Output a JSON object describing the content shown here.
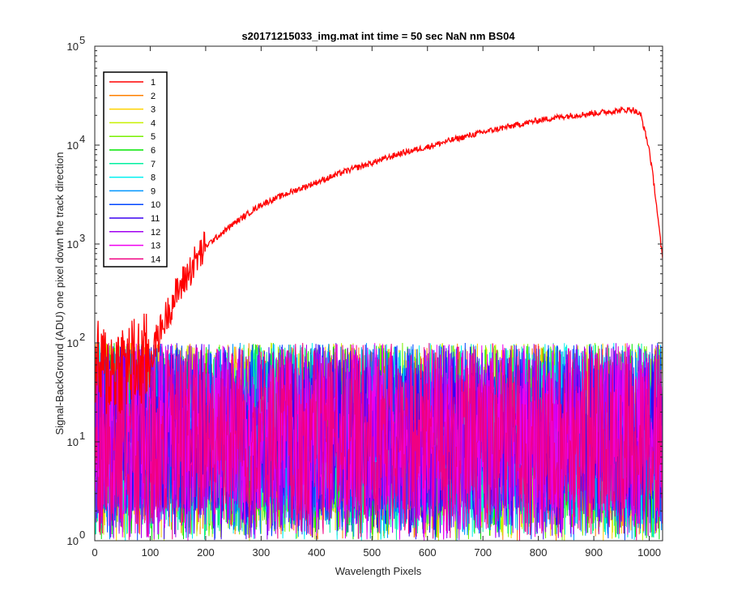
{
  "chart_data": {
    "type": "line",
    "title": "s20171215033_img.mat int time = 50 sec  NaN nm BS04",
    "xlabel": "Wavelength Pixels",
    "ylabel": "Signal-BackGround (ADU) one pixel down the track direction",
    "xlim": [
      0,
      1024
    ],
    "ylim": [
      1,
      100000
    ],
    "yscale": "log",
    "xticks": [
      0,
      100,
      200,
      300,
      400,
      500,
      600,
      700,
      800,
      900,
      1000
    ],
    "yticks": [
      {
        "value": 1,
        "base": "10",
        "exp": "0"
      },
      {
        "value": 10,
        "base": "10",
        "exp": "1"
      },
      {
        "value": 100,
        "base": "10",
        "exp": "2"
      },
      {
        "value": 1000,
        "base": "10",
        "exp": "3"
      },
      {
        "value": 10000,
        "base": "10",
        "exp": "4"
      },
      {
        "value": 100000,
        "base": "10",
        "exp": "5"
      }
    ],
    "grid": false,
    "legend_position": "top-left",
    "series_main": {
      "name": "1",
      "color": "#ff0000",
      "x": [
        0,
        20,
        40,
        60,
        80,
        100,
        120,
        140,
        160,
        180,
        200,
        250,
        300,
        350,
        400,
        450,
        500,
        550,
        600,
        650,
        700,
        750,
        800,
        850,
        900,
        950,
        970,
        985,
        1000,
        1010,
        1020,
        1024
      ],
      "y": [
        55,
        52,
        58,
        60,
        62,
        70,
        140,
        260,
        420,
        650,
        950,
        1600,
        2500,
        3300,
        4200,
        5400,
        6600,
        8200,
        9600,
        11500,
        13500,
        15500,
        17800,
        19700,
        21000,
        22500,
        23000,
        20000,
        9000,
        3500,
        1100,
        700
      ]
    },
    "noise_series": [
      {
        "name": "2",
        "color": "#ff8000"
      },
      {
        "name": "3",
        "color": "#ffd200"
      },
      {
        "name": "4",
        "color": "#c8f000"
      },
      {
        "name": "5",
        "color": "#78f000"
      },
      {
        "name": "6",
        "color": "#00e600"
      },
      {
        "name": "7",
        "color": "#00f0a0"
      },
      {
        "name": "8",
        "color": "#00f0f0"
      },
      {
        "name": "9",
        "color": "#0096ff"
      },
      {
        "name": "10",
        "color": "#0046ff"
      },
      {
        "name": "11",
        "color": "#3c00f0"
      },
      {
        "name": "12",
        "color": "#a000f0"
      },
      {
        "name": "13",
        "color": "#f000f0"
      },
      {
        "name": "14",
        "color": "#f00082"
      }
    ],
    "noise_range": [
      1,
      100
    ]
  }
}
